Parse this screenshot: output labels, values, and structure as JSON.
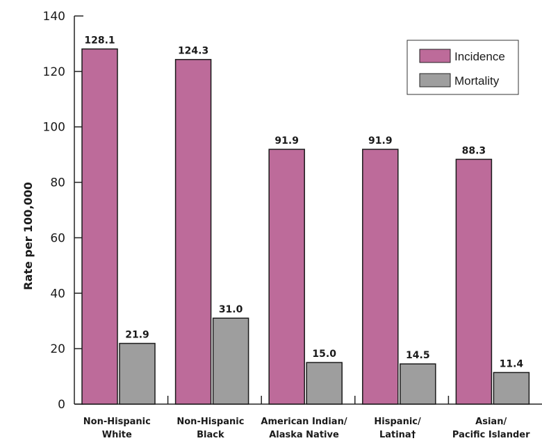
{
  "chart_data": {
    "type": "bar",
    "title": "",
    "xlabel": "",
    "ylabel": "Rate per 100,000",
    "ylim": [
      0,
      140
    ],
    "yticks": [
      0,
      20,
      40,
      60,
      80,
      100,
      120,
      140
    ],
    "grid": false,
    "legend_position": "top-right",
    "categories": [
      [
        "Non-Hispanic",
        "White"
      ],
      [
        "Non-Hispanic",
        "Black"
      ],
      [
        "American Indian/",
        "Alaska Native"
      ],
      [
        "Hispanic/",
        "Latina†"
      ],
      [
        "Asian/",
        "Pacific Islander"
      ]
    ],
    "series": [
      {
        "name": "Incidence",
        "color": "#bd6b9a",
        "values": [
          128.1,
          124.3,
          91.9,
          91.9,
          88.3
        ],
        "labels": [
          "128.1",
          "124.3",
          "91.9",
          "91.9",
          "88.3"
        ]
      },
      {
        "name": "Mortality",
        "color": "#9e9e9e",
        "values": [
          21.9,
          31.0,
          15.0,
          14.5,
          11.4
        ],
        "labels": [
          "21.9",
          "31.0",
          "15.0",
          "14.5",
          "11.4"
        ]
      }
    ]
  }
}
